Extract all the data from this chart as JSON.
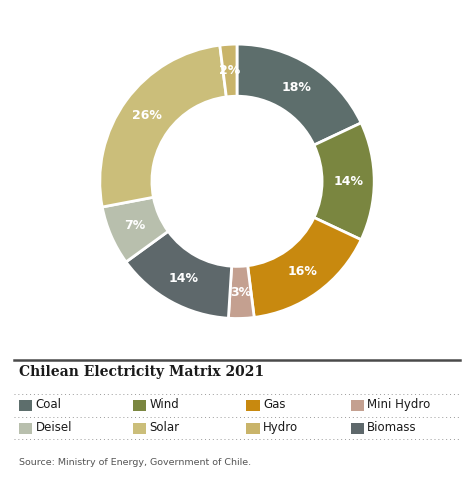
{
  "title": "Chilean Electricity Matrix 2021",
  "source": "Source: Ministry of Energy, Government of Chile.",
  "labels": [
    "Coal",
    "Wind",
    "Gas",
    "Mini Hydro",
    "Biomass",
    "Deisel",
    "Solar",
    "Hydro"
  ],
  "values": [
    18,
    14,
    16,
    3,
    14,
    7,
    26,
    2
  ],
  "wedge_colors": [
    "#5d6e6c",
    "#7a8640",
    "#c8890f",
    "#c4a090",
    "#5e686b",
    "#b8bfad",
    "#cbbe7a",
    "#c9b46a"
  ],
  "background_color": "#ffffff",
  "legend_items_row1": [
    [
      "Coal",
      "#5d6e6c"
    ],
    [
      "Wind",
      "#7a8640"
    ],
    [
      "Gas",
      "#c8890f"
    ],
    [
      "Mini Hydro",
      "#c4a090"
    ]
  ],
  "legend_items_row2": [
    [
      "Deisel",
      "#b8bfad"
    ],
    [
      "Solar",
      "#cbbe7a"
    ],
    [
      "Hydro",
      "#c9b46a"
    ],
    [
      "Biomass",
      "#5e686b"
    ]
  ]
}
